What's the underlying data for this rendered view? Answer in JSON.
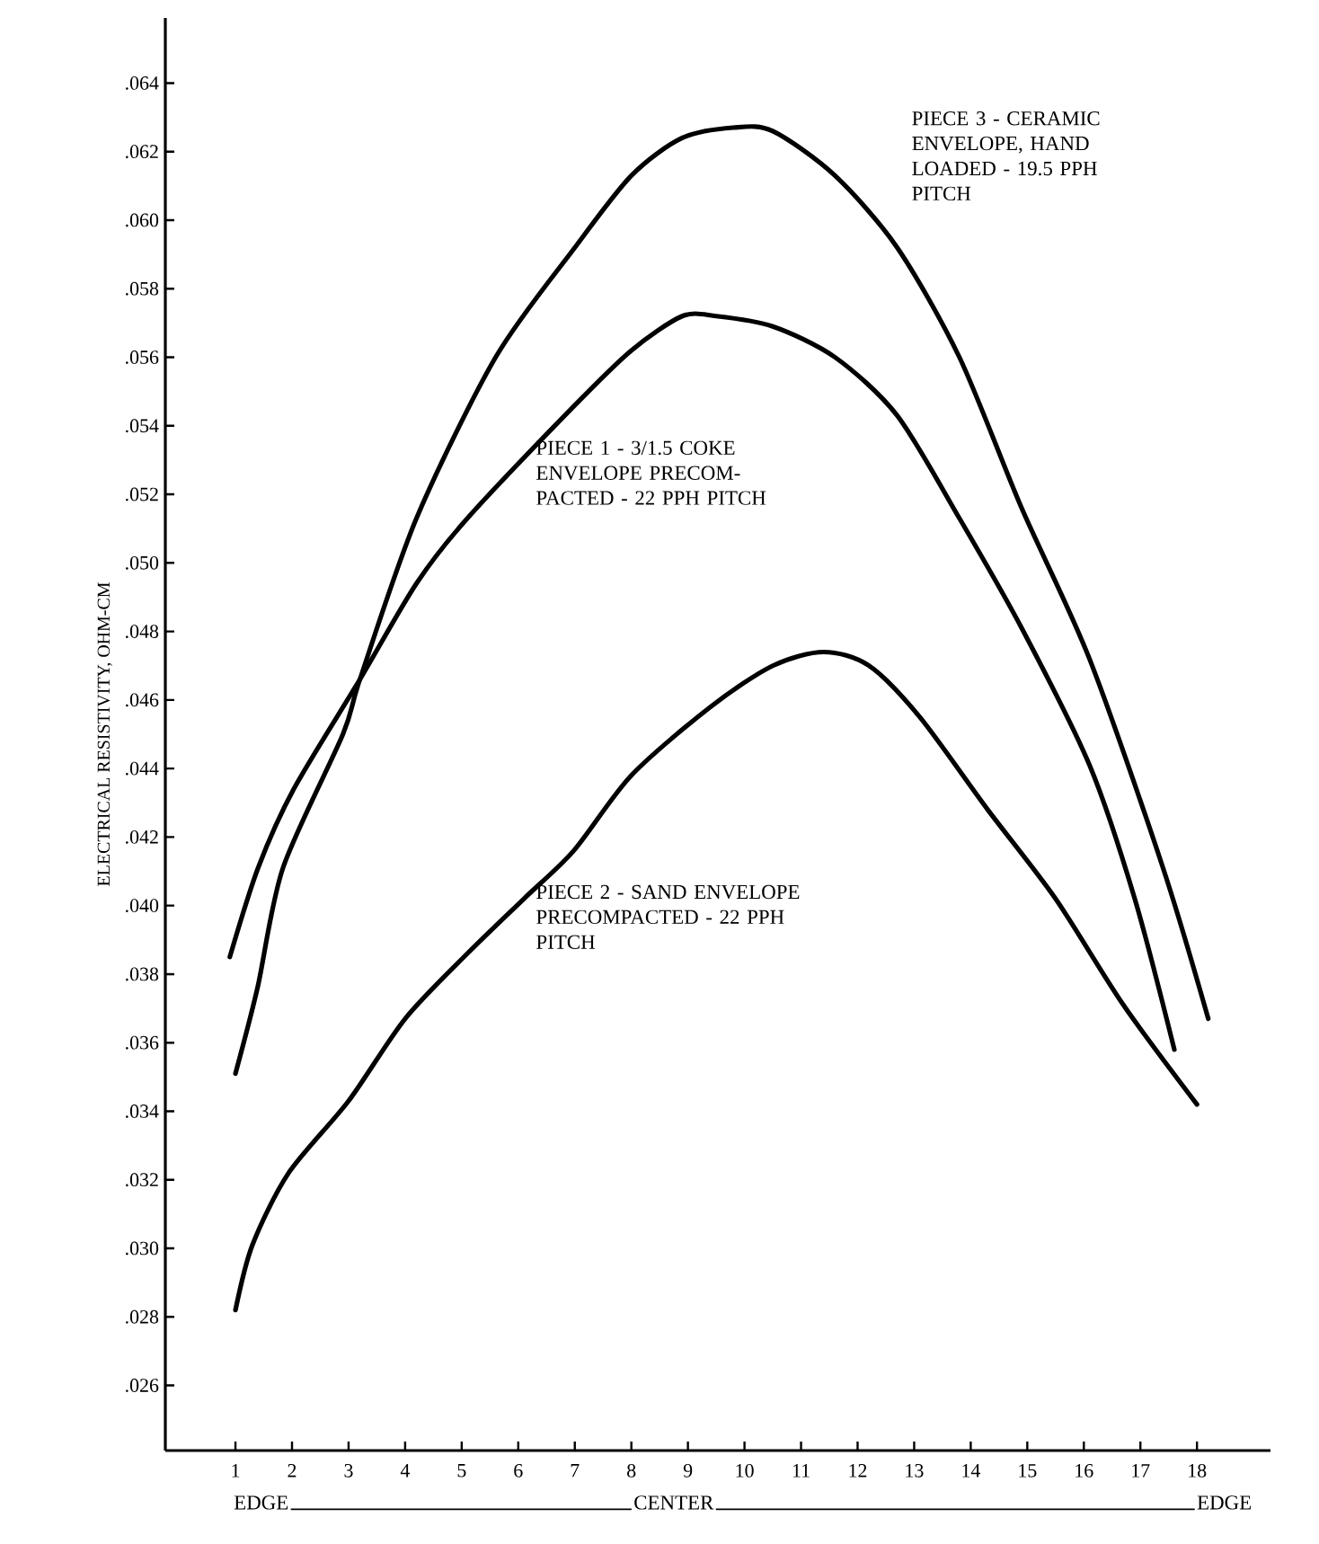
{
  "chart_data": {
    "type": "line",
    "ylabel": "ELECTRICAL RESISTIVITY, OHM-CM",
    "xlim": [
      -0.24,
      19.3
    ],
    "xticks": [
      1,
      2,
      3,
      4,
      5,
      6,
      7,
      8,
      9,
      10,
      11,
      12,
      13,
      14,
      15,
      16,
      17,
      18
    ],
    "ylim": [
      0.0241,
      0.0659
    ],
    "yticks": [
      {
        "value": 0.026,
        "label": ".026"
      },
      {
        "value": 0.028,
        "label": ".028"
      },
      {
        "value": 0.03,
        "label": ".030"
      },
      {
        "value": 0.032,
        "label": ".032"
      },
      {
        "value": 0.034,
        "label": ".034"
      },
      {
        "value": 0.036,
        "label": ".036"
      },
      {
        "value": 0.038,
        "label": ".038"
      },
      {
        "value": 0.04,
        "label": ".040"
      },
      {
        "value": 0.042,
        "label": ".042"
      },
      {
        "value": 0.044,
        "label": ".044"
      },
      {
        "value": 0.046,
        "label": ".046"
      },
      {
        "value": 0.048,
        "label": ".048"
      },
      {
        "value": 0.05,
        "label": ".050"
      },
      {
        "value": 0.052,
        "label": ".052"
      },
      {
        "value": 0.054,
        "label": ".054"
      },
      {
        "value": 0.056,
        "label": ".056"
      },
      {
        "value": 0.058,
        "label": ".058"
      },
      {
        "value": 0.06,
        "label": ".060"
      },
      {
        "value": 0.062,
        "label": ".062"
      },
      {
        "value": 0.064,
        "label": ".064"
      }
    ],
    "series": [
      {
        "color": "#000000",
        "x": [
          1.0,
          1.39,
          1.84,
          2.9,
          3.2,
          4.2,
          5.6,
          7.0,
          8.0,
          8.9,
          9.8,
          10.5,
          11.6,
          12.7,
          13.8,
          14.9,
          16.1,
          17.4,
          18.2
        ],
        "values": [
          0.0351,
          0.0376,
          0.0411,
          0.045,
          0.0466,
          0.0513,
          0.056,
          0.0592,
          0.0613,
          0.0624,
          0.0627,
          0.0626,
          0.0613,
          0.0592,
          0.056,
          0.0516,
          0.0472,
          0.0411,
          0.0367
        ]
      },
      {
        "color": "#000000",
        "x": [
          0.9,
          1.4,
          2.03,
          3.2,
          4.2,
          5.1,
          7.0,
          8.0,
          8.9,
          9.5,
          10.5,
          11.6,
          12.7,
          13.8,
          14.9,
          16.1,
          16.9,
          17.6
        ],
        "values": [
          0.0385,
          0.0411,
          0.0434,
          0.0466,
          0.0494,
          0.0513,
          0.0546,
          0.0562,
          0.0572,
          0.0572,
          0.0569,
          0.056,
          0.0543,
          0.0513,
          0.0481,
          0.0441,
          0.0402,
          0.0358
        ]
      },
      {
        "color": "#000000",
        "x": [
          1.0,
          1.3,
          1.94,
          3.0,
          4.0,
          5.1,
          6.1,
          6.98,
          8.0,
          9.4,
          10.5,
          11.4,
          12.2,
          13.1,
          14.3,
          15.5,
          16.7,
          18.0
        ],
        "values": [
          0.0282,
          0.0301,
          0.0322,
          0.0343,
          0.0367,
          0.0386,
          0.0402,
          0.0416,
          0.0438,
          0.0458,
          0.047,
          0.0474,
          0.047,
          0.0455,
          0.0428,
          0.0402,
          0.0371,
          0.0342
        ]
      }
    ],
    "annotations": [
      "PIECE 3 - CERAMIC ENVELOPE, HAND LOADED - 19.5 PPH PITCH",
      "PIECE 1 - 3/1.5 COKE ENVELOPE PRECOM-PACTED - 22 PPH PITCH",
      "PIECE 2 - SAND ENVELOPE PRECOMPACTED - 22 PPH PITCH",
      "EDGE",
      "CENTER",
      "EDGE"
    ],
    "line_style": "solid",
    "marker": "none",
    "grid": false
  }
}
